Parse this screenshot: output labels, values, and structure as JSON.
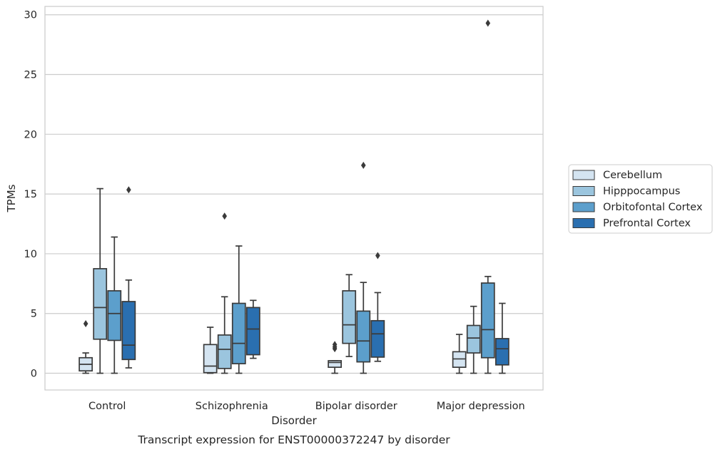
{
  "chart_data": {
    "type": "boxplot",
    "caption": "Transcript expression for ENST00000372247 by disorder",
    "xlabel": "Disorder",
    "ylabel": "TPMs",
    "ylim": [
      -1.4,
      30.7
    ],
    "yticks": [
      0,
      5,
      10,
      15,
      20,
      25,
      30
    ],
    "grid": "horizontal",
    "legend_position": "right",
    "categories": [
      "Control",
      "Schizophrenia",
      "Bipolar disorder",
      "Major depression"
    ],
    "series": [
      {
        "name": "Cerebellum",
        "color": "#d4e4f1",
        "boxes": [
          {
            "whisker_low": 0.0,
            "q1": 0.2,
            "median": 0.75,
            "q3": 1.3,
            "whisker_high": 1.7,
            "outliers": [
              4.15
            ]
          },
          {
            "whisker_low": 0.0,
            "q1": 0.05,
            "median": 0.6,
            "q3": 2.4,
            "whisker_high": 3.85,
            "outliers": []
          },
          {
            "whisker_low": 0.0,
            "q1": 0.5,
            "median": 0.9,
            "q3": 1.05,
            "whisker_high": 1.05,
            "outliers": [
              2.05,
              2.2,
              2.4
            ]
          },
          {
            "whisker_low": 0.0,
            "q1": 0.5,
            "median": 1.2,
            "q3": 1.8,
            "whisker_high": 3.25,
            "outliers": []
          }
        ]
      },
      {
        "name": "Hipppocampus",
        "color": "#9bc5de",
        "boxes": [
          {
            "whisker_low": 0.0,
            "q1": 2.85,
            "median": 5.5,
            "q3": 8.75,
            "whisker_high": 15.45,
            "outliers": []
          },
          {
            "whisker_low": 0.0,
            "q1": 0.4,
            "median": 2.0,
            "q3": 3.2,
            "whisker_high": 6.4,
            "outliers": [
              13.15
            ]
          },
          {
            "whisker_low": 1.4,
            "q1": 2.5,
            "median": 4.05,
            "q3": 6.9,
            "whisker_high": 8.25,
            "outliers": []
          },
          {
            "whisker_low": 0.0,
            "q1": 1.7,
            "median": 2.95,
            "q3": 4.0,
            "whisker_high": 5.6,
            "outliers": []
          }
        ]
      },
      {
        "name": "Orbitofontal Cortex",
        "color": "#5c9fcc",
        "boxes": [
          {
            "whisker_low": 0.0,
            "q1": 2.75,
            "median": 5.0,
            "q3": 6.9,
            "whisker_high": 11.4,
            "outliers": []
          },
          {
            "whisker_low": 0.0,
            "q1": 0.8,
            "median": 2.5,
            "q3": 5.85,
            "whisker_high": 10.65,
            "outliers": []
          },
          {
            "whisker_low": 0.0,
            "q1": 0.95,
            "median": 2.7,
            "q3": 5.2,
            "whisker_high": 7.6,
            "outliers": [
              17.4
            ]
          },
          {
            "whisker_low": 0.0,
            "q1": 1.3,
            "median": 3.65,
            "q3": 7.55,
            "whisker_high": 8.1,
            "outliers": [
              29.3
            ]
          }
        ]
      },
      {
        "name": "Prefrontal Cortex",
        "color": "#2a6fb0",
        "boxes": [
          {
            "whisker_low": 0.45,
            "q1": 1.15,
            "median": 2.35,
            "q3": 6.0,
            "whisker_high": 7.8,
            "outliers": [
              15.35
            ]
          },
          {
            "whisker_low": 1.25,
            "q1": 1.55,
            "median": 3.7,
            "q3": 5.5,
            "whisker_high": 6.1,
            "outliers": []
          },
          {
            "whisker_low": 1.0,
            "q1": 1.35,
            "median": 3.3,
            "q3": 4.4,
            "whisker_high": 6.75,
            "outliers": [
              9.85
            ]
          },
          {
            "whisker_low": 0.0,
            "q1": 0.7,
            "median": 2.05,
            "q3": 2.9,
            "whisker_high": 5.85,
            "outliers": []
          }
        ]
      }
    ]
  }
}
